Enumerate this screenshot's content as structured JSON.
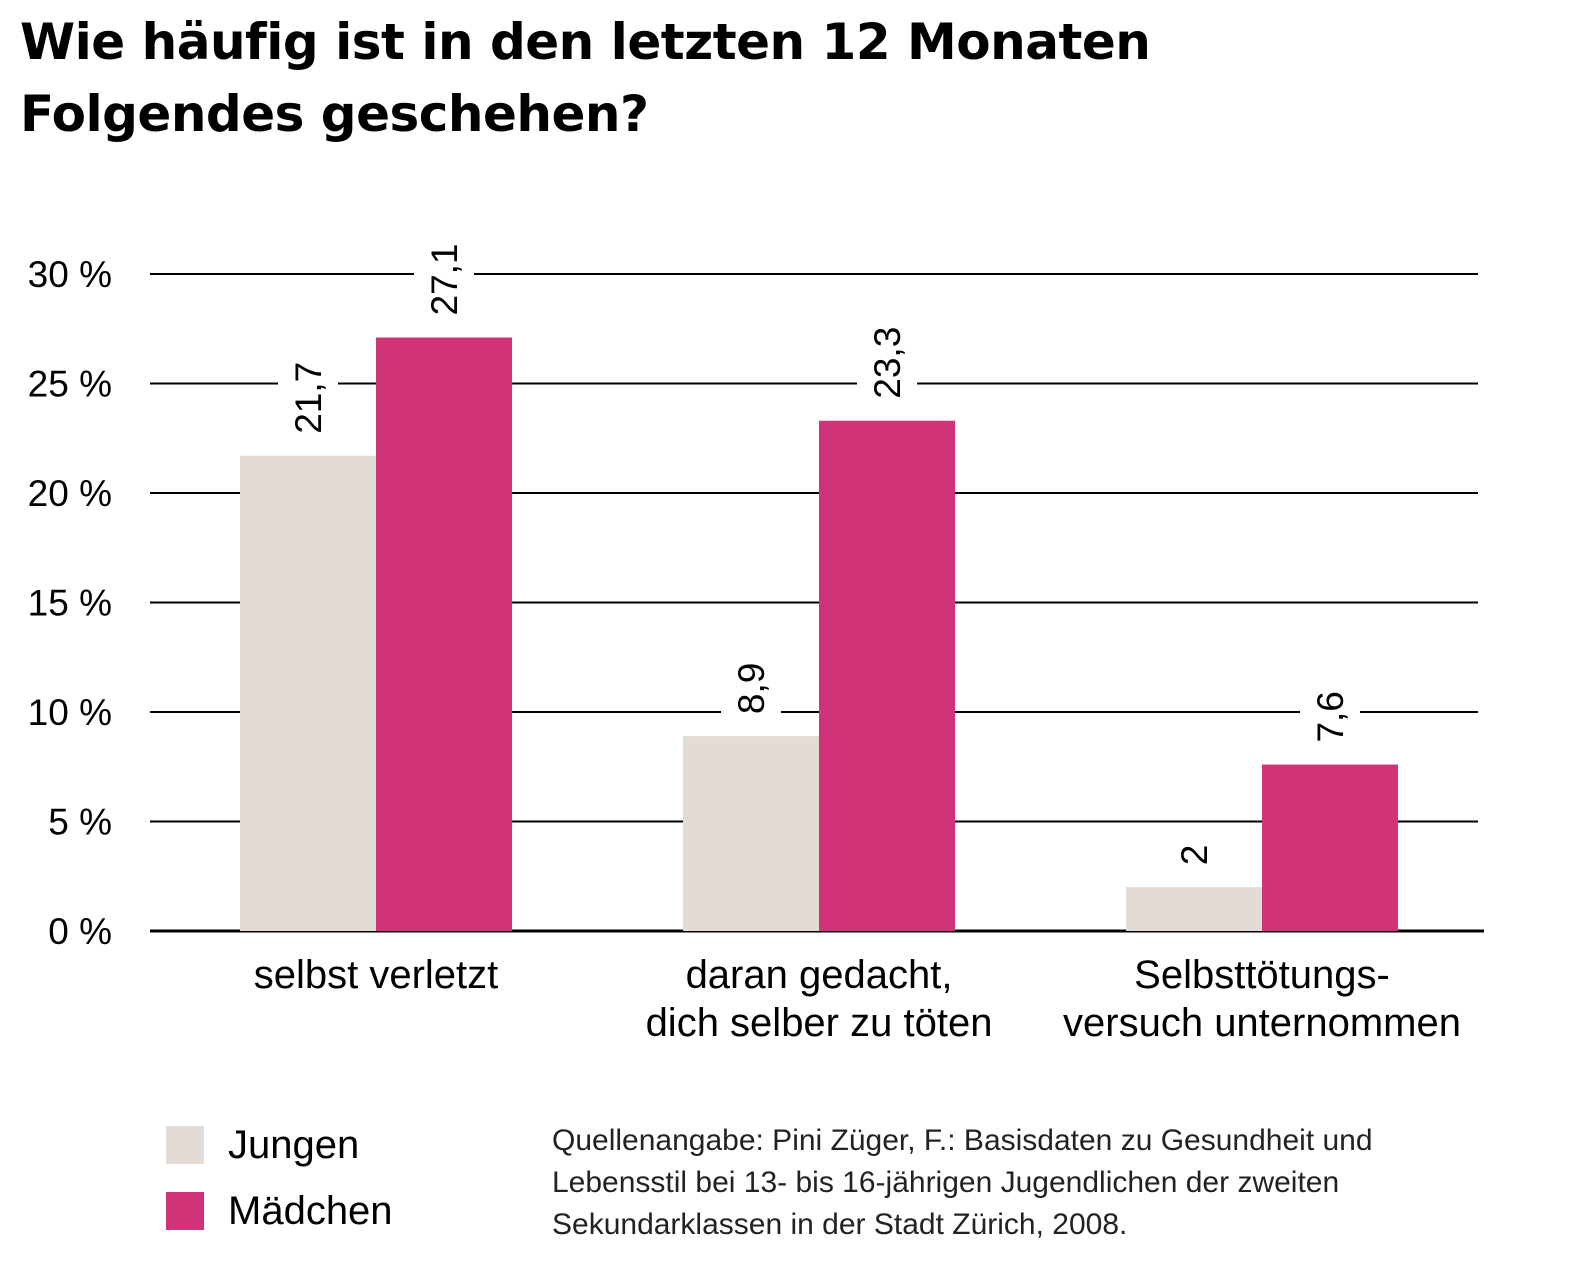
{
  "title_lines": [
    "Wie häufig ist in den letzten 12 Monaten",
    "Folgendes geschehen?"
  ],
  "colors": {
    "jungen": "#e2dbd6",
    "maedchen": "#d13378",
    "grid": "#000000"
  },
  "chart_data": {
    "type": "bar",
    "title": "Wie häufig ist in den letzten 12 Monaten Folgendes geschehen?",
    "categories": [
      [
        "selbst verletzt"
      ],
      [
        "daran gedacht,",
        "dich selber zu töten"
      ],
      [
        "Selbsttötungs-",
        "versuch unternommen"
      ]
    ],
    "series": [
      {
        "name": "Jungen",
        "values": [
          21.7,
          8.9,
          2
        ],
        "labels": [
          "21,7",
          "8,9",
          "2"
        ]
      },
      {
        "name": "Mädchen",
        "values": [
          27.1,
          23.3,
          7.6
        ],
        "labels": [
          "27,1",
          "23,3",
          "7,6"
        ]
      }
    ],
    "yticks": [
      0,
      5,
      10,
      15,
      20,
      25,
      30
    ],
    "ytick_labels": [
      "0 %",
      "5 %",
      "10 %",
      "15 %",
      "20 %",
      "25 %",
      "30 %"
    ],
    "ylim": [
      0,
      30
    ],
    "xlabel": "",
    "ylabel": "",
    "grid": true,
    "legend_position": "bottom-left"
  },
  "legend": [
    {
      "label": "Jungen",
      "color": "#e2dbd6"
    },
    {
      "label": "Mädchen",
      "color": "#d13378"
    }
  ],
  "source_lines": [
    "Quellenangabe: Pini Züger, F.: Basisdaten zu Gesundheit und",
    "Lebensstil bei 13- bis 16-jährigen Jugendlichen der zweiten",
    "Sekundarklassen in der Stadt Zürich, 2008."
  ]
}
